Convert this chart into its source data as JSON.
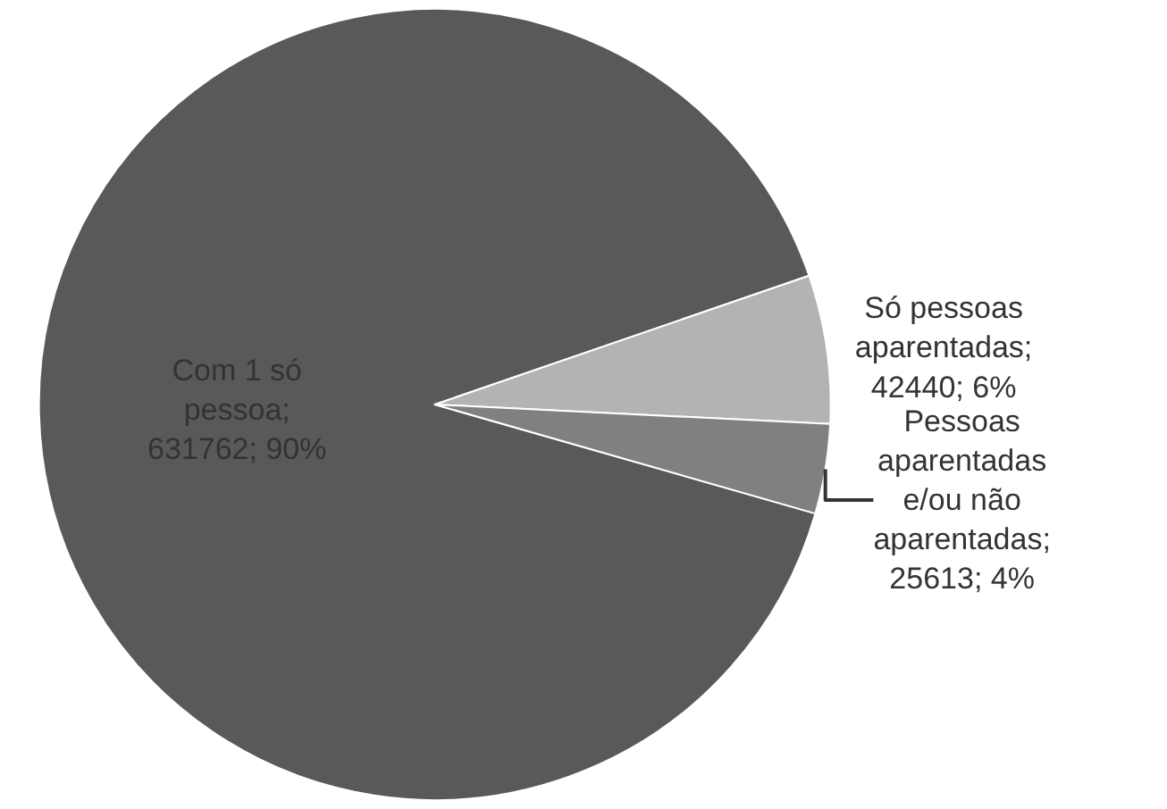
{
  "chart_data": {
    "type": "pie",
    "categories": [
      "Com 1 só pessoa",
      "Só pessoas aparentadas",
      "Pessoas aparentadas e/ou não aparentadas"
    ],
    "values": [
      631762,
      42440,
      25613
    ],
    "colors": [
      "#595959",
      "#b3b3b3",
      "#808080"
    ],
    "value_labels": [
      "; 631762; 90%",
      "; 42440; 6%",
      "; 25613; 4%"
    ],
    "legend": false
  }
}
